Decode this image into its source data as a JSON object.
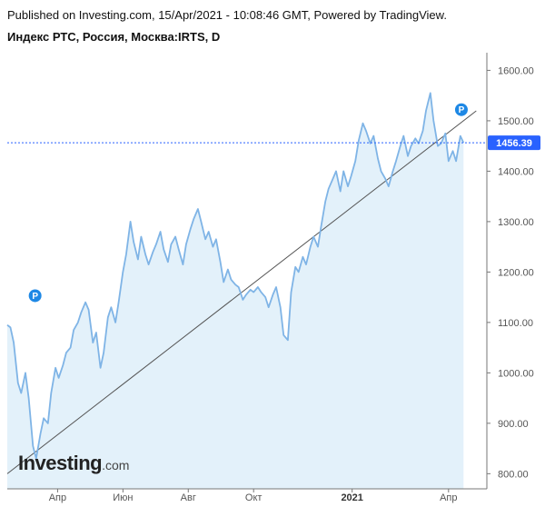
{
  "header": {
    "published": "Published on Investing.com, 15/Apr/2021 - 10:08:46 GMT, Powered by TradingView.",
    "symbol": "Индекс РТС, Россия, Москва:IRTS, D"
  },
  "logo": {
    "main": "Investing",
    "tld": ".com"
  },
  "colors": {
    "line": "#7fb4e6",
    "area": "#e3f1fa",
    "trend": "#555555",
    "trend_dark": "#6b1e24",
    "price_badge": "#2962ff",
    "marker": "#1e88e5",
    "axis": "#777777"
  },
  "chart_data": {
    "type": "area",
    "x_tick_labels": [
      "Апр",
      "Июн",
      "Авг",
      "Окт",
      "2021",
      "Апр"
    ],
    "bold_x_tick": "2021",
    "y_ticks": [
      800,
      900,
      1000,
      1100,
      1200,
      1300,
      1400,
      1500,
      1600
    ],
    "y_tick_labels": [
      "800.00",
      "900.00",
      "1000.00",
      "1100.00",
      "1200.00",
      "1300.00",
      "1400.00",
      "1500.00",
      "1600.00"
    ],
    "ylim": [
      770,
      1635
    ],
    "last_price": 1456.39,
    "last_price_label": "1456.39",
    "markers": [
      {
        "label": "P",
        "x": "2020-03-11",
        "y": 1153
      },
      {
        "label": "P",
        "x": "2021-04-13",
        "y": 1522
      }
    ],
    "series": [
      {
        "values": [
          [
            "2020-02-14",
            1095
          ],
          [
            "2020-02-17",
            1090
          ],
          [
            "2020-02-20",
            1060
          ],
          [
            "2020-02-24",
            980
          ],
          [
            "2020-02-27",
            960
          ],
          [
            "2020-03-02",
            1000
          ],
          [
            "2020-03-05",
            950
          ],
          [
            "2020-03-09",
            855
          ],
          [
            "2020-03-12",
            830
          ],
          [
            "2020-03-16",
            880
          ],
          [
            "2020-03-19",
            910
          ],
          [
            "2020-03-23",
            900
          ],
          [
            "2020-03-26",
            960
          ],
          [
            "2020-03-30",
            1010
          ],
          [
            "2020-04-02",
            990
          ],
          [
            "2020-04-06",
            1015
          ],
          [
            "2020-04-09",
            1040
          ],
          [
            "2020-04-13",
            1050
          ],
          [
            "2020-04-16",
            1085
          ],
          [
            "2020-04-20",
            1100
          ],
          [
            "2020-04-23",
            1120
          ],
          [
            "2020-04-27",
            1140
          ],
          [
            "2020-04-30",
            1125
          ],
          [
            "2020-05-04",
            1060
          ],
          [
            "2020-05-07",
            1080
          ],
          [
            "2020-05-11",
            1010
          ],
          [
            "2020-05-14",
            1040
          ],
          [
            "2020-05-18",
            1110
          ],
          [
            "2020-05-21",
            1130
          ],
          [
            "2020-05-25",
            1100
          ],
          [
            "2020-05-28",
            1140
          ],
          [
            "2020-06-01",
            1200
          ],
          [
            "2020-06-04",
            1235
          ],
          [
            "2020-06-08",
            1300
          ],
          [
            "2020-06-11",
            1260
          ],
          [
            "2020-06-15",
            1225
          ],
          [
            "2020-06-18",
            1270
          ],
          [
            "2020-06-22",
            1235
          ],
          [
            "2020-06-25",
            1215
          ],
          [
            "2020-06-29",
            1240
          ],
          [
            "2020-07-02",
            1255
          ],
          [
            "2020-07-06",
            1280
          ],
          [
            "2020-07-09",
            1245
          ],
          [
            "2020-07-13",
            1220
          ],
          [
            "2020-07-16",
            1255
          ],
          [
            "2020-07-20",
            1270
          ],
          [
            "2020-07-23",
            1245
          ],
          [
            "2020-07-27",
            1215
          ],
          [
            "2020-07-30",
            1255
          ],
          [
            "2020-08-03",
            1285
          ],
          [
            "2020-08-06",
            1305
          ],
          [
            "2020-08-10",
            1325
          ],
          [
            "2020-08-13",
            1300
          ],
          [
            "2020-08-17",
            1265
          ],
          [
            "2020-08-20",
            1280
          ],
          [
            "2020-08-24",
            1250
          ],
          [
            "2020-08-27",
            1265
          ],
          [
            "2020-08-31",
            1220
          ],
          [
            "2020-09-03",
            1180
          ],
          [
            "2020-09-07",
            1205
          ],
          [
            "2020-09-10",
            1185
          ],
          [
            "2020-09-14",
            1175
          ],
          [
            "2020-09-17",
            1170
          ],
          [
            "2020-09-21",
            1145
          ],
          [
            "2020-09-24",
            1155
          ],
          [
            "2020-09-28",
            1165
          ],
          [
            "2020-10-01",
            1160
          ],
          [
            "2020-10-05",
            1170
          ],
          [
            "2020-10-08",
            1160
          ],
          [
            "2020-10-12",
            1150
          ],
          [
            "2020-10-15",
            1130
          ],
          [
            "2020-10-19",
            1155
          ],
          [
            "2020-10-22",
            1170
          ],
          [
            "2020-10-26",
            1130
          ],
          [
            "2020-10-29",
            1075
          ],
          [
            "2020-11-02",
            1065
          ],
          [
            "2020-11-05",
            1160
          ],
          [
            "2020-11-09",
            1210
          ],
          [
            "2020-11-12",
            1200
          ],
          [
            "2020-11-16",
            1230
          ],
          [
            "2020-11-19",
            1215
          ],
          [
            "2020-11-23",
            1250
          ],
          [
            "2020-11-26",
            1270
          ],
          [
            "2020-11-30",
            1250
          ],
          [
            "2020-12-03",
            1290
          ],
          [
            "2020-12-07",
            1340
          ],
          [
            "2020-12-10",
            1365
          ],
          [
            "2020-12-14",
            1385
          ],
          [
            "2020-12-17",
            1400
          ],
          [
            "2020-12-21",
            1360
          ],
          [
            "2020-12-24",
            1400
          ],
          [
            "2020-12-28",
            1370
          ],
          [
            "2020-12-31",
            1390
          ],
          [
            "2021-01-04",
            1420
          ],
          [
            "2021-01-07",
            1460
          ],
          [
            "2021-01-11",
            1495
          ],
          [
            "2021-01-14",
            1480
          ],
          [
            "2021-01-18",
            1455
          ],
          [
            "2021-01-21",
            1470
          ],
          [
            "2021-01-25",
            1425
          ],
          [
            "2021-01-28",
            1400
          ],
          [
            "2021-02-01",
            1385
          ],
          [
            "2021-02-04",
            1370
          ],
          [
            "2021-02-08",
            1400
          ],
          [
            "2021-02-11",
            1420
          ],
          [
            "2021-02-15",
            1450
          ],
          [
            "2021-02-18",
            1470
          ],
          [
            "2021-02-22",
            1430
          ],
          [
            "2021-02-25",
            1450
          ],
          [
            "2021-03-01",
            1465
          ],
          [
            "2021-03-04",
            1455
          ],
          [
            "2021-03-08",
            1480
          ],
          [
            "2021-03-11",
            1520
          ],
          [
            "2021-03-15",
            1555
          ],
          [
            "2021-03-18",
            1500
          ],
          [
            "2021-03-22",
            1450
          ],
          [
            "2021-03-25",
            1455
          ],
          [
            "2021-03-29",
            1475
          ],
          [
            "2021-04-01",
            1420
          ],
          [
            "2021-04-05",
            1440
          ],
          [
            "2021-04-08",
            1420
          ],
          [
            "2021-04-12",
            1470
          ],
          [
            "2021-04-15",
            1456.39
          ]
        ]
      }
    ],
    "trendline": {
      "from": [
        "2020-02-14",
        800
      ],
      "to": [
        "2021-04-15",
        1507
      ]
    }
  }
}
